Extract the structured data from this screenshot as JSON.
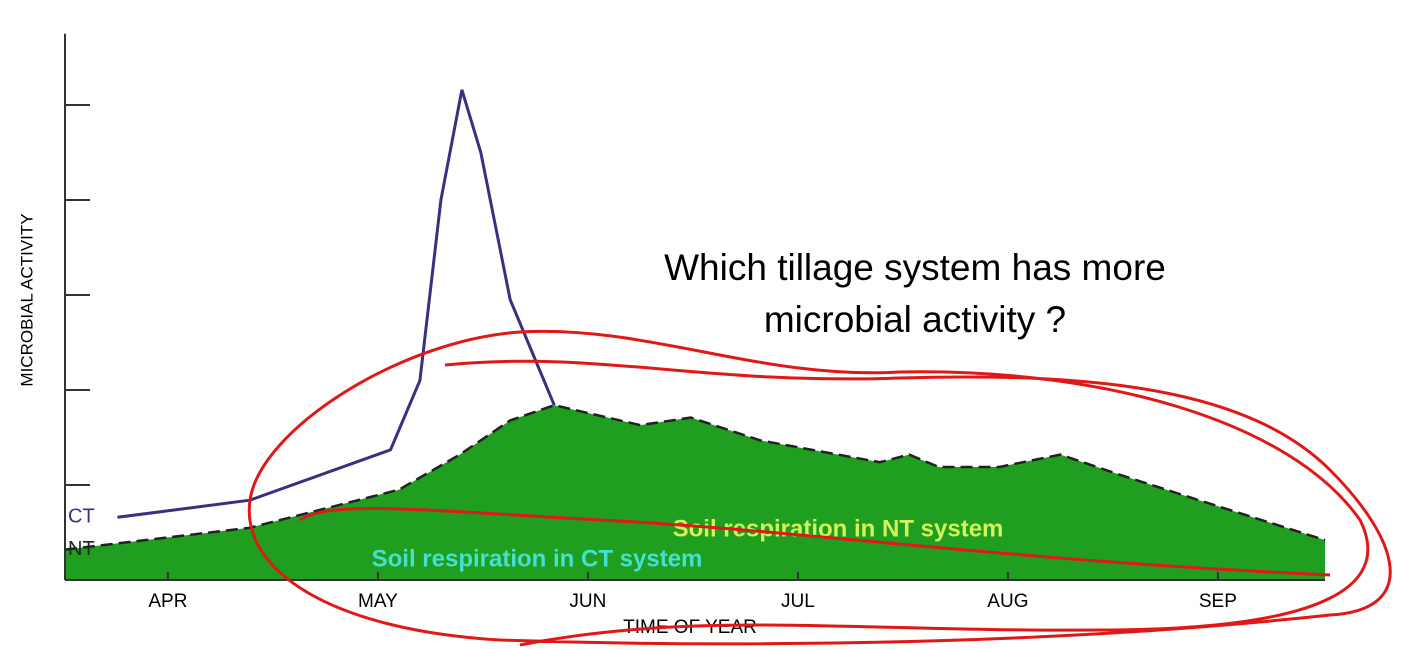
{
  "chart_data": {
    "type": "line",
    "y_label": "MICROBIAL ACTIVITY",
    "x_label": "TIME OF YEAR",
    "annotations": [
      "Which tillage system has more",
      "microbial activity ?",
      "Soil respiration in NT system",
      "Soil respiration in CT system"
    ],
    "xlim": [
      -0.49,
      5.51
    ],
    "xticks": [
      {
        "value": 0,
        "label": "APR"
      },
      {
        "value": 1,
        "label": "MAY"
      },
      {
        "value": 2,
        "label": "JUN"
      },
      {
        "value": 3,
        "label": "JUL"
      },
      {
        "value": 4,
        "label": "AUG"
      },
      {
        "value": 5,
        "label": "SEP"
      }
    ],
    "ylim": [
      0,
      5.75
    ],
    "yticks": [
      0,
      1,
      2,
      3,
      4,
      5
    ],
    "series": [
      {
        "name": "CT",
        "color": "#3b2f80",
        "x": [
          -0.24,
          0.39,
          1.06,
          1.2,
          1.3,
          1.4,
          1.49,
          1.63,
          1.84
        ],
        "values": [
          0.66,
          0.84,
          1.37,
          2.1,
          4.0,
          5.16,
          4.5,
          2.95,
          1.84
        ]
      },
      {
        "name": "NT",
        "color": "#1f9e1f",
        "area": true,
        "x": [
          -0.49,
          0.39,
          1.1,
          1.39,
          1.63,
          1.84,
          2.25,
          2.49,
          2.82,
          3.39,
          3.53,
          3.67,
          3.96,
          4.25,
          4.53,
          4.91,
          5.51
        ],
        "values": [
          0.32,
          0.55,
          0.95,
          1.32,
          1.68,
          1.84,
          1.63,
          1.71,
          1.47,
          1.24,
          1.32,
          1.19,
          1.19,
          1.32,
          1.11,
          0.84,
          0.42
        ]
      }
    ]
  }
}
